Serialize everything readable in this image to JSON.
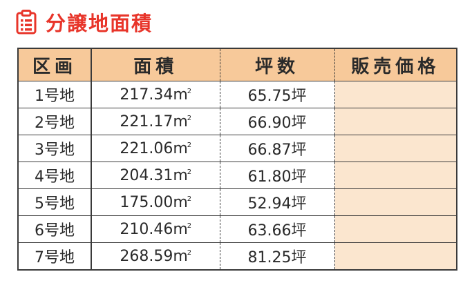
{
  "header": {
    "title": "分譲地面積",
    "icon": "clipboard-list-icon",
    "accent_color": "#e8352a"
  },
  "table": {
    "header_color": "#f7c99a",
    "price_cell_color": "#fbe6cf",
    "columns": [
      "区画",
      "面積",
      "坪数",
      "販売価格"
    ],
    "rows": [
      {
        "lot": "1号地",
        "area": "217.34",
        "area_unit": "m",
        "area_unit_sup": "2",
        "tsubo": "65.75坪",
        "price": ""
      },
      {
        "lot": "2号地",
        "area": "221.17",
        "area_unit": "m",
        "area_unit_sup": "2",
        "tsubo": "66.90坪",
        "price": ""
      },
      {
        "lot": "3号地",
        "area": "221.06",
        "area_unit": "m",
        "area_unit_sup": "2",
        "tsubo": "66.87坪",
        "price": ""
      },
      {
        "lot": "4号地",
        "area": "204.31",
        "area_unit": "m",
        "area_unit_sup": "2",
        "tsubo": "61.80坪",
        "price": ""
      },
      {
        "lot": "5号地",
        "area": "175.00",
        "area_unit": "m",
        "area_unit_sup": "2",
        "tsubo": "52.94坪",
        "price": ""
      },
      {
        "lot": "6号地",
        "area": "210.46",
        "area_unit": "m",
        "area_unit_sup": "2",
        "tsubo": "63.66坪",
        "price": ""
      },
      {
        "lot": "7号地",
        "area": "268.59",
        "area_unit": "m",
        "area_unit_sup": "2",
        "tsubo": "81.25坪",
        "price": ""
      }
    ]
  }
}
